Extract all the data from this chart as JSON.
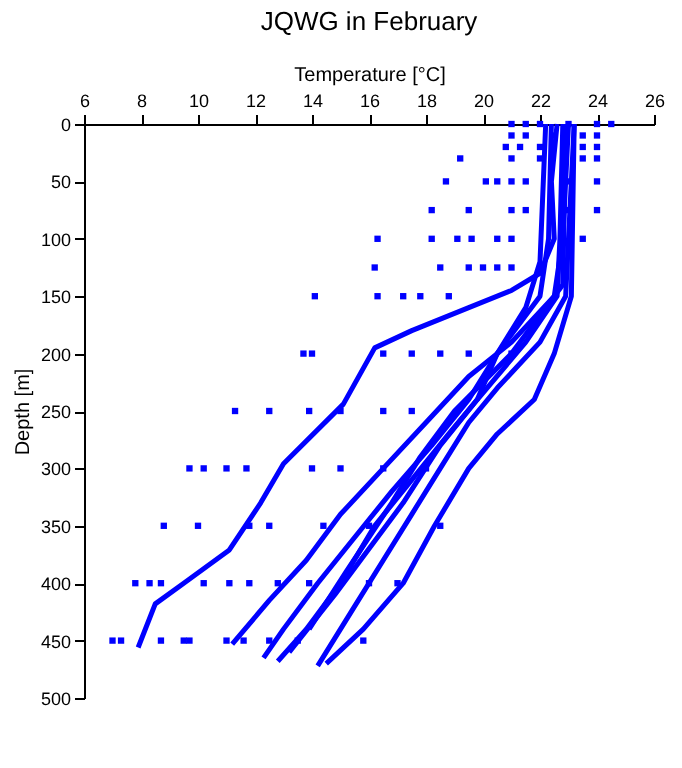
{
  "chart_data": {
    "type": "line",
    "title": "JQWG in February",
    "xlabel": "Temperature [°C]",
    "ylabel": "Depth [m]",
    "xlim": [
      6,
      26
    ],
    "xticks": [
      6,
      8,
      10,
      12,
      14,
      16,
      18,
      20,
      22,
      24,
      26
    ],
    "ylim": [
      500,
      0
    ],
    "yticks": [
      0,
      50,
      100,
      150,
      200,
      250,
      300,
      350,
      400,
      450,
      500
    ],
    "grid": false,
    "line_style": "solid",
    "series": [
      {
        "color": "#0000ff",
        "x": [
          22.6,
          22.4,
          22.5,
          22.0,
          21.0,
          19.5,
          17.5,
          16.2,
          15.1,
          13.0,
          12.2,
          11.1,
          9.5,
          8.5,
          7.9
        ],
        "values": [
          0,
          50,
          100,
          130,
          145,
          160,
          180,
          195,
          244,
          296,
          330,
          371,
          400,
          418,
          456
        ]
      },
      {
        "color": "#0000ff",
        "x": [
          23.0,
          22.8,
          22.5,
          21.0,
          19.5,
          18.0,
          16.5,
          15.0,
          13.8,
          12.5,
          11.2
        ],
        "values": [
          0,
          100,
          150,
          190,
          220,
          260,
          300,
          340,
          380,
          415,
          453
        ]
      },
      {
        "color": "#0000ff",
        "x": [
          22.4,
          22.3,
          22.0,
          20.5,
          19.5,
          18.2,
          16.8,
          15.5,
          14.2,
          13.0,
          12.3
        ],
        "values": [
          0,
          100,
          150,
          200,
          240,
          280,
          320,
          360,
          400,
          440,
          465
        ]
      },
      {
        "color": "#0000ff",
        "x": [
          22.8,
          22.7,
          22.6,
          21.5,
          19.8,
          18.5,
          17.2,
          16.0,
          14.8,
          13.2
        ],
        "values": [
          0,
          100,
          150,
          190,
          240,
          280,
          330,
          370,
          410,
          460
        ]
      },
      {
        "color": "#0000ff",
        "x": [
          23.2,
          23.0,
          22.9,
          22.0,
          20.5,
          19.5,
          18.5,
          17.5,
          16.5,
          15.5,
          14.2
        ],
        "values": [
          0,
          100,
          150,
          190,
          230,
          260,
          300,
          340,
          380,
          420,
          472
        ]
      },
      {
        "color": "#0000ff",
        "x": [
          23.2,
          23.1,
          22.5,
          21.8,
          20.5,
          19.5,
          18.3,
          17.2,
          15.8,
          14.5
        ],
        "values": [
          0,
          150,
          200,
          240,
          270,
          300,
          350,
          400,
          440,
          470
        ]
      },
      {
        "color": "#0000ff",
        "x": [
          22.2,
          22.0,
          21.5,
          20.5,
          19.8,
          18.8,
          17.5,
          16.2,
          15.0,
          13.8,
          12.8
        ],
        "values": [
          0,
          120,
          160,
          200,
          240,
          270,
          310,
          350,
          400,
          440,
          468
        ]
      },
      {
        "color": "#0000ff",
        "x": [
          22.9,
          22.8,
          21.0,
          19.0,
          17.8,
          16.8,
          15.2,
          13.9
        ],
        "values": [
          0,
          140,
          200,
          250,
          290,
          330,
          390,
          440
        ]
      },
      {
        "type": "scatter",
        "color": "#0000ff",
        "marker": "square",
        "x": [
          21.0,
          21.5,
          22.0,
          23.0,
          24.0,
          24.5,
          21.0,
          21.5,
          22.5,
          23.5,
          24.0,
          20.8,
          21.3,
          22.0,
          23.5,
          24.0,
          19.2,
          21.0,
          22.0,
          23.5,
          24.0,
          18.7,
          20.1,
          20.5,
          21.0,
          21.5,
          23.0,
          24.0,
          18.2,
          19.5,
          21.0,
          21.5,
          23.0,
          24.0,
          16.3,
          18.2,
          19.1,
          19.6,
          20.5,
          21.0,
          23.5,
          16.2,
          18.5,
          19.5,
          20.0,
          20.5,
          21.0,
          14.1,
          16.3,
          17.2,
          17.8,
          18.8,
          13.7,
          14.0,
          16.5,
          17.5,
          18.5,
          19.5,
          21.0,
          11.3,
          12.5,
          13.9,
          15.0,
          16.5,
          17.5,
          9.7,
          10.2,
          11.0,
          11.7,
          14.0,
          15.0,
          16.5,
          18.0,
          8.8,
          10.0,
          11.8,
          12.5,
          14.4,
          16.0,
          18.5,
          7.8,
          8.3,
          8.7,
          10.2,
          11.1,
          11.8,
          12.8,
          13.9,
          16.0,
          17.0,
          7.0,
          7.3,
          8.7,
          9.5,
          9.7,
          11.0,
          11.6,
          12.5,
          13.5,
          15.8
        ],
        "values": [
          0,
          0,
          0,
          0,
          0,
          0,
          10,
          10,
          10,
          10,
          10,
          20,
          20,
          20,
          20,
          20,
          30,
          30,
          30,
          30,
          30,
          50,
          50,
          50,
          50,
          50,
          50,
          50,
          75,
          75,
          75,
          75,
          75,
          75,
          100,
          100,
          100,
          100,
          100,
          100,
          100,
          125,
          125,
          125,
          125,
          125,
          125,
          150,
          150,
          150,
          150,
          150,
          200,
          200,
          200,
          200,
          200,
          200,
          200,
          250,
          250,
          250,
          250,
          250,
          250,
          300,
          300,
          300,
          300,
          300,
          300,
          300,
          300,
          350,
          350,
          350,
          350,
          350,
          350,
          350,
          400,
          400,
          400,
          400,
          400,
          400,
          400,
          400,
          400,
          400,
          450,
          450,
          450,
          450,
          450,
          450,
          450,
          450,
          450,
          450
        ]
      }
    ]
  }
}
